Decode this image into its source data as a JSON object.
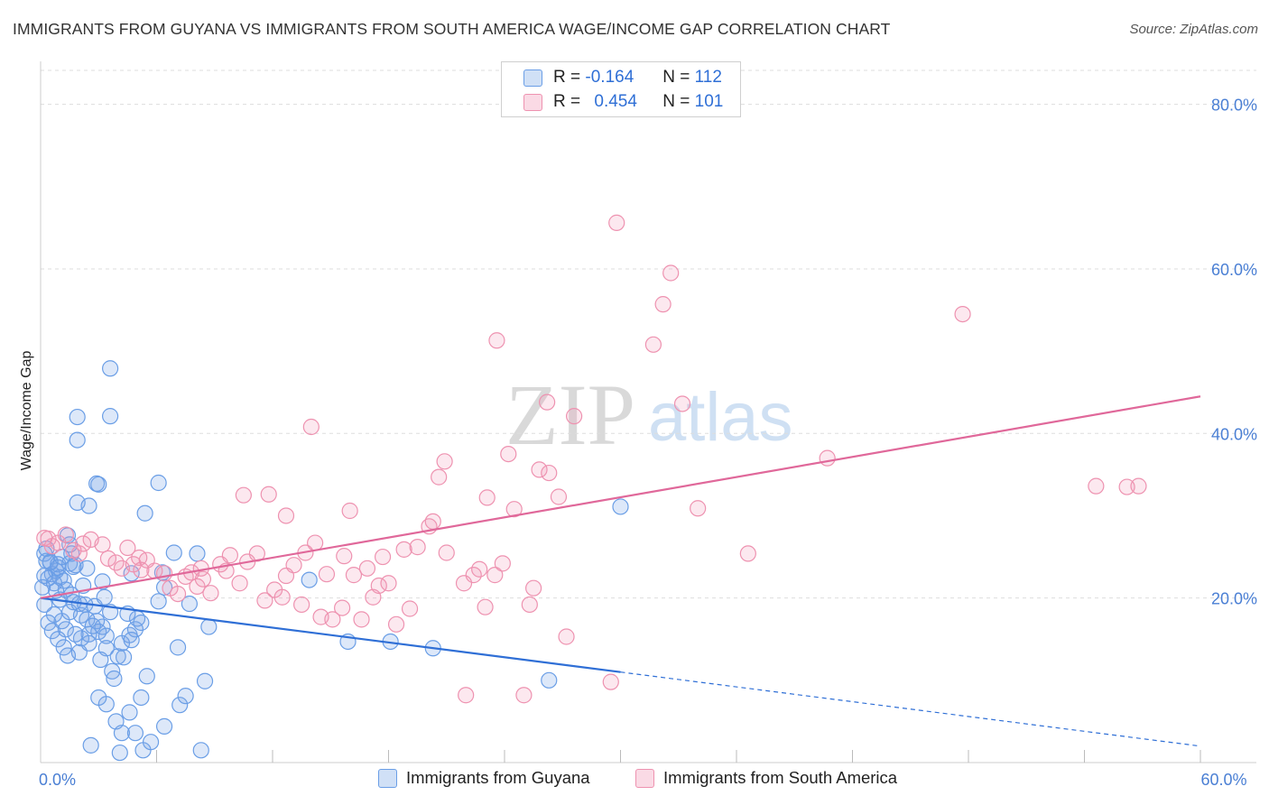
{
  "title": "IMMIGRANTS FROM GUYANA VS IMMIGRANTS FROM SOUTH AMERICA WAGE/INCOME GAP CORRELATION CHART",
  "source": "Source: ZipAtlas.com",
  "watermark": {
    "zip": "ZIP",
    "atlas": "atlas"
  },
  "colors": {
    "blue": "#6a9ee6",
    "blue_fill": "rgba(120,165,230,0.25)",
    "blue_line": "#2f6fd6",
    "pink": "#ee92b0",
    "pink_fill": "rgba(240,150,180,0.22)",
    "pink_line": "#e0689a",
    "grid": "#dddddd",
    "tick_text": "#4a7fd4"
  },
  "legend_top": {
    "rows": [
      {
        "r_label": "R =",
        "r_value": "-0.164",
        "n_label": "N =",
        "n_value": "112"
      },
      {
        "r_label": "R =",
        "r_value": "0.454",
        "n_label": "N =",
        "n_value": "101"
      }
    ]
  },
  "legend_bottom": {
    "series": [
      {
        "label": "Immigrants from Guyana"
      },
      {
        "label": "Immigrants from South America"
      }
    ]
  },
  "chart_data": {
    "type": "scatter",
    "title": "IMMIGRANTS FROM GUYANA VS IMMIGRANTS FROM SOUTH AMERICA WAGE/INCOME GAP CORRELATION CHART",
    "xlabel": "",
    "ylabel": "Wage/Income Gap",
    "xlim": [
      0,
      60
    ],
    "ylim": [
      0,
      85
    ],
    "x_tick_labels": [
      "0.0%",
      "60.0%"
    ],
    "x_ticks": [
      0,
      60
    ],
    "x_minor_ticks": [
      6,
      12,
      18,
      24,
      30,
      36,
      42,
      48,
      54
    ],
    "y_ticks": [
      20,
      40,
      60,
      80
    ],
    "y_tick_labels": [
      "20.0%",
      "40.0%",
      "60.0%",
      "80.0%"
    ],
    "grid": true,
    "series": [
      {
        "name": "Immigrants from Guyana",
        "R": -0.164,
        "N": 112,
        "trend": {
          "x_start": 0,
          "y_start": 20.0,
          "x_solid_end": 30,
          "y_solid_end": 11.0,
          "x_end": 60,
          "y_end": 2.0
        },
        "points": [
          [
            0.2,
            25.4
          ],
          [
            0.3,
            24.5
          ],
          [
            0.5,
            24.3
          ],
          [
            0.6,
            22.9
          ],
          [
            0.4,
            22.4
          ],
          [
            0.8,
            23.3
          ],
          [
            1.0,
            22.5
          ],
          [
            1.2,
            22.1
          ],
          [
            1.3,
            21.0
          ],
          [
            0.9,
            24.1
          ],
          [
            1.5,
            24.2
          ],
          [
            1.4,
            27.6
          ],
          [
            1.6,
            25.4
          ],
          [
            1.8,
            24.0
          ],
          [
            0.7,
            18.0
          ],
          [
            1.1,
            17.2
          ],
          [
            1.3,
            16.2
          ],
          [
            1.5,
            18.3
          ],
          [
            1.7,
            19.5
          ],
          [
            2.0,
            19.3
          ],
          [
            2.1,
            17.9
          ],
          [
            2.3,
            19.2
          ],
          [
            2.4,
            17.4
          ],
          [
            2.5,
            15.6
          ],
          [
            2.1,
            15.1
          ],
          [
            1.8,
            15.6
          ],
          [
            2.0,
            13.4
          ],
          [
            1.4,
            13.0
          ],
          [
            2.5,
            14.5
          ],
          [
            2.8,
            19.0
          ],
          [
            2.9,
            17.2
          ],
          [
            3.0,
            15.9
          ],
          [
            3.2,
            16.5
          ],
          [
            3.4,
            15.4
          ],
          [
            3.6,
            18.3
          ],
          [
            3.4,
            13.9
          ],
          [
            3.1,
            12.5
          ],
          [
            3.7,
            11.1
          ],
          [
            3.8,
            10.2
          ],
          [
            4.0,
            12.9
          ],
          [
            4.2,
            14.5
          ],
          [
            4.3,
            12.8
          ],
          [
            4.6,
            15.5
          ],
          [
            4.9,
            16.2
          ],
          [
            5.0,
            17.5
          ],
          [
            5.2,
            17.0
          ],
          [
            4.7,
            14.9
          ],
          [
            4.5,
            18.1
          ],
          [
            5.5,
            10.5
          ],
          [
            5.2,
            7.9
          ],
          [
            4.6,
            6.1
          ],
          [
            4.9,
            3.6
          ],
          [
            3.9,
            5.0
          ],
          [
            4.2,
            3.6
          ],
          [
            3.4,
            7.1
          ],
          [
            3.0,
            7.9
          ],
          [
            2.6,
            2.1
          ],
          [
            4.1,
            1.2
          ],
          [
            5.3,
            1.5
          ],
          [
            5.7,
            2.5
          ],
          [
            6.4,
            4.4
          ],
          [
            7.2,
            7.0
          ],
          [
            7.5,
            8.1
          ],
          [
            8.5,
            9.9
          ],
          [
            8.3,
            1.5
          ],
          [
            7.1,
            14.0
          ],
          [
            8.7,
            16.5
          ],
          [
            7.7,
            19.3
          ],
          [
            6.1,
            19.6
          ],
          [
            6.4,
            21.3
          ],
          [
            6.3,
            23.1
          ],
          [
            6.9,
            25.5
          ],
          [
            8.1,
            25.4
          ],
          [
            4.7,
            23.0
          ],
          [
            3.2,
            22.0
          ],
          [
            2.4,
            23.6
          ],
          [
            1.5,
            26.5
          ],
          [
            2.5,
            31.2
          ],
          [
            1.9,
            31.6
          ],
          [
            2.9,
            33.9
          ],
          [
            3.0,
            33.8
          ],
          [
            1.9,
            39.2
          ],
          [
            1.9,
            42.0
          ],
          [
            3.6,
            42.1
          ],
          [
            3.6,
            47.9
          ],
          [
            5.4,
            30.3
          ],
          [
            6.1,
            34.0
          ],
          [
            13.9,
            22.2
          ],
          [
            15.9,
            14.7
          ],
          [
            18.1,
            14.7
          ],
          [
            20.3,
            13.9
          ],
          [
            26.3,
            10.0
          ],
          [
            30.0,
            31.1
          ],
          [
            0.2,
            22.7
          ],
          [
            0.5,
            24.4
          ],
          [
            0.9,
            23.7
          ],
          [
            1.1,
            25.0
          ],
          [
            0.3,
            26.0
          ],
          [
            0.7,
            21.8
          ],
          [
            1.0,
            19.8
          ],
          [
            1.6,
            20.4
          ],
          [
            2.2,
            21.5
          ],
          [
            0.4,
            17.0
          ],
          [
            0.6,
            16.0
          ],
          [
            0.9,
            15.0
          ],
          [
            1.2,
            14.0
          ],
          [
            2.7,
            16.6
          ],
          [
            3.3,
            20.1
          ],
          [
            0.8,
            20.9
          ],
          [
            1.7,
            23.8
          ],
          [
            0.1,
            21.3
          ],
          [
            0.2,
            19.2
          ]
        ]
      },
      {
        "name": "Immigrants from South America",
        "R": 0.454,
        "N": 101,
        "trend": {
          "x_start": 0,
          "y_start": 20.0,
          "x_end": 60,
          "y_end": 44.5
        },
        "points": [
          [
            0.2,
            27.3
          ],
          [
            0.4,
            27.2
          ],
          [
            0.6,
            26.3
          ],
          [
            0.9,
            26.7
          ],
          [
            1.3,
            27.7
          ],
          [
            1.7,
            25.8
          ],
          [
            2.0,
            25.4
          ],
          [
            2.2,
            26.6
          ],
          [
            2.6,
            27.1
          ],
          [
            3.2,
            26.5
          ],
          [
            3.5,
            24.8
          ],
          [
            3.9,
            24.3
          ],
          [
            4.2,
            23.6
          ],
          [
            4.5,
            26.1
          ],
          [
            4.8,
            24.1
          ],
          [
            5.1,
            24.9
          ],
          [
            5.5,
            24.6
          ],
          [
            5.2,
            23.4
          ],
          [
            5.9,
            23.3
          ],
          [
            6.4,
            23.0
          ],
          [
            6.7,
            21.2
          ],
          [
            7.1,
            20.5
          ],
          [
            7.5,
            22.6
          ],
          [
            7.8,
            23.1
          ],
          [
            8.1,
            21.4
          ],
          [
            8.4,
            22.3
          ],
          [
            8.8,
            20.6
          ],
          [
            8.3,
            23.6
          ],
          [
            9.3,
            24.1
          ],
          [
            9.6,
            23.3
          ],
          [
            9.8,
            25.2
          ],
          [
            10.3,
            21.8
          ],
          [
            10.7,
            24.4
          ],
          [
            11.2,
            25.4
          ],
          [
            11.6,
            19.7
          ],
          [
            12.1,
            21.0
          ],
          [
            12.5,
            20.1
          ],
          [
            12.7,
            22.7
          ],
          [
            13.1,
            24.0
          ],
          [
            13.5,
            19.2
          ],
          [
            13.7,
            25.5
          ],
          [
            14.2,
            26.7
          ],
          [
            14.8,
            22.9
          ],
          [
            14.5,
            17.7
          ],
          [
            15.1,
            17.4
          ],
          [
            15.6,
            18.8
          ],
          [
            15.7,
            25.1
          ],
          [
            16.2,
            22.8
          ],
          [
            16.6,
            17.4
          ],
          [
            16.9,
            23.6
          ],
          [
            17.2,
            20.1
          ],
          [
            17.5,
            21.5
          ],
          [
            17.7,
            25.0
          ],
          [
            18.0,
            21.8
          ],
          [
            18.4,
            16.8
          ],
          [
            18.8,
            25.9
          ],
          [
            19.1,
            18.7
          ],
          [
            19.5,
            26.2
          ],
          [
            20.1,
            28.7
          ],
          [
            20.3,
            29.3
          ],
          [
            20.6,
            34.7
          ],
          [
            20.9,
            36.6
          ],
          [
            21.0,
            25.5
          ],
          [
            21.9,
            21.8
          ],
          [
            22.4,
            22.8
          ],
          [
            22.7,
            23.5
          ],
          [
            23.0,
            18.9
          ],
          [
            23.1,
            32.2
          ],
          [
            23.5,
            22.8
          ],
          [
            23.9,
            24.2
          ],
          [
            24.2,
            37.5
          ],
          [
            24.5,
            30.8
          ],
          [
            25.3,
            19.2
          ],
          [
            25.5,
            21.2
          ],
          [
            25.8,
            35.6
          ],
          [
            26.3,
            35.2
          ],
          [
            26.8,
            32.3
          ],
          [
            26.2,
            43.8
          ],
          [
            27.2,
            15.3
          ],
          [
            27.6,
            42.1
          ],
          [
            29.8,
            65.6
          ],
          [
            29.5,
            9.8
          ],
          [
            31.7,
            50.8
          ],
          [
            32.2,
            55.7
          ],
          [
            32.6,
            59.5
          ],
          [
            33.2,
            43.6
          ],
          [
            34.0,
            30.9
          ],
          [
            36.6,
            25.4
          ],
          [
            16.0,
            30.6
          ],
          [
            14.0,
            40.8
          ],
          [
            11.8,
            32.6
          ],
          [
            10.5,
            32.5
          ],
          [
            12.7,
            30.0
          ],
          [
            22.0,
            8.2
          ],
          [
            25.0,
            8.2
          ],
          [
            47.7,
            54.5
          ],
          [
            54.6,
            33.6
          ],
          [
            56.8,
            33.6
          ],
          [
            56.2,
            33.5
          ],
          [
            40.7,
            37.0
          ],
          [
            23.6,
            51.3
          ]
        ]
      }
    ]
  }
}
